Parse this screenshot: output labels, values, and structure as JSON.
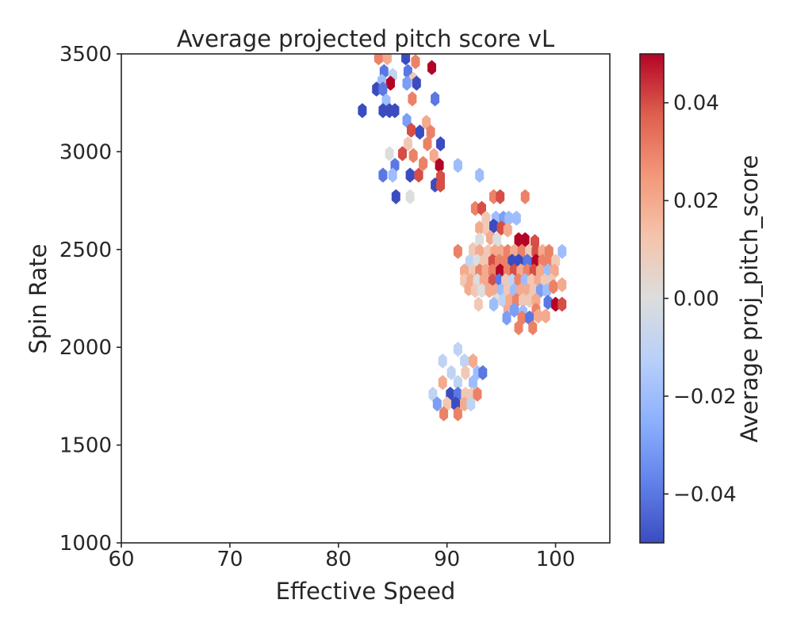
{
  "chart_data": {
    "type": "heatmap",
    "subtype": "hexbin",
    "title": "Average projected pitch score vL",
    "xlabel": "Effective Speed",
    "ylabel": "Spin Rate",
    "xlim": [
      60,
      105
    ],
    "ylim": [
      1000,
      3500
    ],
    "xticks": [
      60,
      70,
      80,
      90,
      100
    ],
    "yticks": [
      1000,
      1500,
      2000,
      2500,
      3000,
      3500
    ],
    "grid": false,
    "colorbar": {
      "label": "Average proj_pitch_score",
      "colormap": "coolwarm",
      "vmin": -0.05,
      "vmax": 0.05,
      "ticks": [
        -0.04,
        -0.02,
        0.0,
        0.02,
        0.04
      ],
      "tick_labels": [
        "−0.04",
        "−0.02",
        "0.00",
        "0.02",
        "0.04"
      ],
      "colors": [
        "#3b4cc0",
        "#6282ea",
        "#8db0fe",
        "#b8d0f9",
        "#dcdddd",
        "#f5c4ac",
        "#f4987a",
        "#de604d",
        "#b40426"
      ]
    },
    "bins": [
      [
        83.7,
        3480,
        0.03
      ],
      [
        84.5,
        3480,
        0.02
      ],
      [
        86.2,
        3480,
        -0.05
      ],
      [
        87.1,
        3460,
        0.03
      ],
      [
        88.6,
        3430,
        0.05
      ],
      [
        84.2,
        3410,
        -0.04
      ],
      [
        85.0,
        3390,
        -0.01
      ],
      [
        86.4,
        3410,
        -0.04
      ],
      [
        86.9,
        3370,
        0.01
      ],
      [
        84.0,
        3360,
        -0.02
      ],
      [
        84.8,
        3350,
        0.05
      ],
      [
        86.3,
        3350,
        -0.03
      ],
      [
        87.2,
        3350,
        -0.05
      ],
      [
        83.5,
        3320,
        -0.05
      ],
      [
        84.1,
        3320,
        -0.04
      ],
      [
        84.4,
        3260,
        -0.02
      ],
      [
        86.8,
        3270,
        0.03
      ],
      [
        88.9,
        3270,
        -0.04
      ],
      [
        82.2,
        3210,
        -0.05
      ],
      [
        84.1,
        3210,
        -0.05
      ],
      [
        84.7,
        3210,
        -0.05
      ],
      [
        85.2,
        3210,
        -0.05
      ],
      [
        86.3,
        3160,
        -0.03
      ],
      [
        88.1,
        3150,
        0.02
      ],
      [
        86.7,
        3110,
        0.04
      ],
      [
        87.5,
        3100,
        -0.05
      ],
      [
        88.5,
        3100,
        0.03
      ],
      [
        88.2,
        3040,
        0.03
      ],
      [
        89.4,
        3040,
        -0.05
      ],
      [
        86.4,
        3040,
        0.01
      ],
      [
        84.7,
        2990,
        0.0
      ],
      [
        85.9,
        2990,
        0.04
      ],
      [
        86.9,
        2980,
        0.03
      ],
      [
        88.8,
        2980,
        0.02
      ],
      [
        85.2,
        2930,
        -0.04
      ],
      [
        87.8,
        2940,
        0.03
      ],
      [
        89.3,
        2930,
        0.05
      ],
      [
        91.0,
        2930,
        -0.02
      ],
      [
        84.1,
        2880,
        -0.04
      ],
      [
        85.0,
        2880,
        -0.02
      ],
      [
        86.6,
        2880,
        -0.05
      ],
      [
        87.4,
        2880,
        0.04
      ],
      [
        89.4,
        2870,
        0.04
      ],
      [
        93.0,
        2880,
        -0.02
      ],
      [
        88.9,
        2830,
        -0.05
      ],
      [
        89.4,
        2830,
        0.04
      ],
      [
        85.3,
        2770,
        -0.05
      ],
      [
        86.6,
        2770,
        0.0
      ],
      [
        94.3,
        2770,
        0.03
      ],
      [
        94.9,
        2770,
        0.04
      ],
      [
        97.2,
        2770,
        0.03
      ],
      [
        92.6,
        2710,
        0.03
      ],
      [
        93.2,
        2710,
        0.04
      ],
      [
        93.6,
        2660,
        0.01
      ],
      [
        94.5,
        2660,
        -0.02
      ],
      [
        95.2,
        2660,
        -0.03
      ],
      [
        95.7,
        2660,
        -0.02
      ],
      [
        96.4,
        2660,
        -0.02
      ],
      [
        93.0,
        2610,
        0.02
      ],
      [
        93.7,
        2600,
        0.01
      ],
      [
        94.3,
        2620,
        -0.05
      ],
      [
        95.0,
        2610,
        0.04
      ],
      [
        95.6,
        2600,
        0.02
      ],
      [
        93.0,
        2550,
        0.0
      ],
      [
        94.0,
        2560,
        0.02
      ],
      [
        94.6,
        2550,
        0.0
      ],
      [
        96.6,
        2550,
        0.05
      ],
      [
        97.2,
        2550,
        0.05
      ],
      [
        98.1,
        2540,
        0.04
      ],
      [
        91.0,
        2490,
        0.03
      ],
      [
        92.4,
        2500,
        0.01
      ],
      [
        93.0,
        2490,
        0.02
      ],
      [
        93.8,
        2490,
        0.01
      ],
      [
        94.4,
        2490,
        0.02
      ],
      [
        95.0,
        2490,
        0.02
      ],
      [
        95.6,
        2490,
        0.03
      ],
      [
        96.2,
        2490,
        0.02
      ],
      [
        96.9,
        2490,
        0.03
      ],
      [
        97.6,
        2490,
        0.01
      ],
      [
        98.2,
        2490,
        0.04
      ],
      [
        98.8,
        2490,
        0.02
      ],
      [
        99.4,
        2490,
        0.03
      ],
      [
        100.6,
        2490,
        -0.02
      ],
      [
        92.1,
        2440,
        -0.01
      ],
      [
        92.8,
        2440,
        0.0
      ],
      [
        93.4,
        2440,
        0.01
      ],
      [
        94.2,
        2440,
        0.04
      ],
      [
        94.8,
        2440,
        0.03
      ],
      [
        95.4,
        2440,
        0.03
      ],
      [
        96.0,
        2440,
        -0.05
      ],
      [
        96.6,
        2440,
        -0.05
      ],
      [
        97.4,
        2440,
        -0.04
      ],
      [
        98.2,
        2440,
        0.05
      ],
      [
        98.8,
        2440,
        0.03
      ],
      [
        99.4,
        2440,
        0.03
      ],
      [
        100.0,
        2440,
        0.01
      ],
      [
        91.6,
        2390,
        0.02
      ],
      [
        92.4,
        2390,
        0.01
      ],
      [
        93.0,
        2390,
        0.03
      ],
      [
        93.6,
        2390,
        0.02
      ],
      [
        94.2,
        2390,
        0.03
      ],
      [
        94.9,
        2390,
        0.05
      ],
      [
        95.6,
        2390,
        0.03
      ],
      [
        96.2,
        2390,
        0.04
      ],
      [
        96.8,
        2390,
        0.02
      ],
      [
        97.4,
        2390,
        0.03
      ],
      [
        98.0,
        2390,
        0.04
      ],
      [
        98.6,
        2390,
        0.02
      ],
      [
        99.3,
        2390,
        -0.02
      ],
      [
        99.9,
        2390,
        0.02
      ],
      [
        91.6,
        2340,
        0.01
      ],
      [
        92.2,
        2340,
        0.02
      ],
      [
        92.8,
        2340,
        0.0
      ],
      [
        93.4,
        2340,
        0.02
      ],
      [
        94.2,
        2340,
        0.04
      ],
      [
        94.8,
        2340,
        -0.04
      ],
      [
        95.4,
        2340,
        0.01
      ],
      [
        96.0,
        2340,
        -0.01
      ],
      [
        96.6,
        2340,
        0.03
      ],
      [
        97.2,
        2340,
        -0.02
      ],
      [
        97.8,
        2340,
        0.01
      ],
      [
        98.4,
        2340,
        0.02
      ],
      [
        99.0,
        2340,
        0.01
      ],
      [
        99.6,
        2340,
        0.01
      ],
      [
        92.0,
        2300,
        0.02
      ],
      [
        92.6,
        2290,
        0.01
      ],
      [
        93.2,
        2290,
        0.0
      ],
      [
        93.9,
        2290,
        0.02
      ],
      [
        94.5,
        2290,
        0.02
      ],
      [
        95.0,
        2290,
        -0.02
      ],
      [
        95.6,
        2290,
        0.01
      ],
      [
        96.2,
        2290,
        -0.02
      ],
      [
        96.8,
        2290,
        0.02
      ],
      [
        97.4,
        2290,
        0.02
      ],
      [
        98.0,
        2290,
        0.01
      ],
      [
        98.6,
        2290,
        -0.03
      ],
      [
        99.2,
        2290,
        -0.02
      ],
      [
        99.8,
        2310,
        0.03
      ],
      [
        100.6,
        2320,
        0.02
      ],
      [
        94.6,
        2240,
        0.0
      ],
      [
        95.2,
        2240,
        -0.01
      ],
      [
        95.8,
        2240,
        0.02
      ],
      [
        96.4,
        2240,
        0.03
      ],
      [
        97.0,
        2240,
        0.01
      ],
      [
        97.6,
        2240,
        0.01
      ],
      [
        98.2,
        2240,
        0.02
      ],
      [
        99.3,
        2230,
        -0.04
      ],
      [
        100.0,
        2220,
        0.05
      ],
      [
        100.6,
        2220,
        0.04
      ],
      [
        92.9,
        2220,
        0.01
      ],
      [
        94.3,
        2220,
        -0.02
      ],
      [
        95.6,
        2190,
        0.02
      ],
      [
        96.2,
        2190,
        -0.03
      ],
      [
        97.0,
        2180,
        -0.02
      ],
      [
        98.2,
        2190,
        0.03
      ],
      [
        95.5,
        2150,
        -0.03
      ],
      [
        96.9,
        2150,
        0.03
      ],
      [
        97.6,
        2150,
        -0.04
      ],
      [
        98.4,
        2160,
        0.02
      ],
      [
        99.1,
        2160,
        0.02
      ],
      [
        96.6,
        2100,
        0.03
      ],
      [
        97.9,
        2100,
        0.03
      ],
      [
        91.0,
        1990,
        -0.01
      ],
      [
        89.6,
        1930,
        -0.01
      ],
      [
        91.6,
        1930,
        -0.01
      ],
      [
        92.4,
        1930,
        0.02
      ],
      [
        90.4,
        1870,
        -0.01
      ],
      [
        91.7,
        1870,
        0.01
      ],
      [
        92.8,
        1870,
        -0.02
      ],
      [
        93.3,
        1870,
        -0.04
      ],
      [
        89.6,
        1820,
        0.02
      ],
      [
        91.0,
        1820,
        -0.01
      ],
      [
        92.4,
        1820,
        -0.02
      ],
      [
        88.7,
        1760,
        -0.01
      ],
      [
        90.3,
        1760,
        -0.05
      ],
      [
        91.0,
        1760,
        -0.04
      ],
      [
        91.7,
        1760,
        0.01
      ],
      [
        92.3,
        1760,
        0.01
      ],
      [
        92.8,
        1760,
        0.03
      ],
      [
        89.1,
        1710,
        -0.03
      ],
      [
        90.0,
        1710,
        0.01
      ],
      [
        90.8,
        1710,
        -0.05
      ],
      [
        91.6,
        1710,
        0.02
      ],
      [
        92.2,
        1710,
        -0.01
      ],
      [
        89.7,
        1660,
        0.03
      ],
      [
        91.0,
        1660,
        0.03
      ]
    ]
  }
}
